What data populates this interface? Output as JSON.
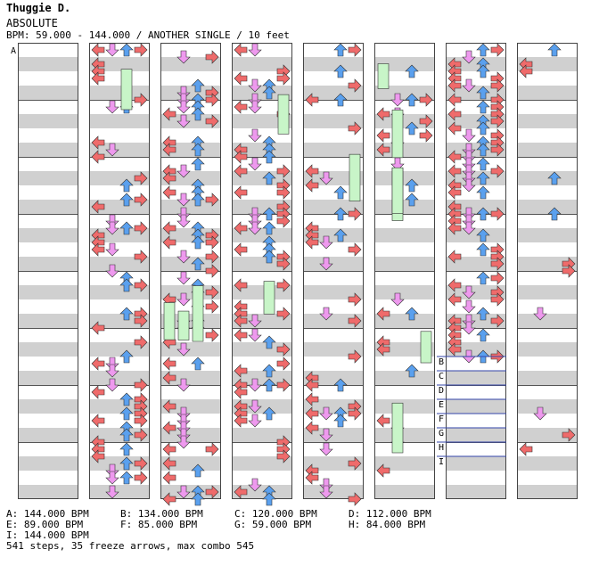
{
  "song": {
    "artist": "Thuggie D.",
    "title": "ABSOLUTE",
    "meta": "BPM: 59.000 - 144.000 / ANOTHER SINGLE / 10 feet"
  },
  "chart_data": {
    "type": "step-chart",
    "columns": 8,
    "lanes": [
      "left",
      "down",
      "up",
      "right"
    ],
    "lane_colors": {
      "left": "#ef6b6b",
      "down": "#ee99ee",
      "up": "#5aa0ee",
      "right": "#ef6b6b"
    },
    "freeze_color": "#c8f5c8",
    "bpm_markers_on_chart": [
      {
        "label": "A",
        "column": 0
      },
      {
        "label": "B",
        "column": 6
      },
      {
        "label": "C",
        "column": 6
      },
      {
        "label": "D",
        "column": 6
      },
      {
        "label": "E",
        "column": 6
      },
      {
        "label": "F",
        "column": 6
      },
      {
        "label": "G",
        "column": 6
      },
      {
        "label": "H",
        "column": 6
      },
      {
        "label": "I",
        "column": 6
      }
    ],
    "bpm_legend": [
      {
        "label": "A",
        "text": "A: 144.000 BPM"
      },
      {
        "label": "B",
        "text": "B: 134.000 BPM"
      },
      {
        "label": "C",
        "text": "C: 120.000 BPM"
      },
      {
        "label": "D",
        "text": "D: 112.000 BPM"
      },
      {
        "label": "E",
        "text": "E: 89.000 BPM"
      },
      {
        "label": "F",
        "text": "F: 85.000 BPM"
      },
      {
        "label": "G",
        "text": "G: 59.000 BPM"
      },
      {
        "label": "H",
        "text": "H: 84.000 BPM"
      },
      {
        "label": "I",
        "text": "I: 144.000 BPM"
      }
    ],
    "stats": {
      "steps": 541,
      "freeze_arrows": 35,
      "max_combo": 545
    },
    "summary": "541 steps, 35 freeze arrows, max combo 545"
  }
}
